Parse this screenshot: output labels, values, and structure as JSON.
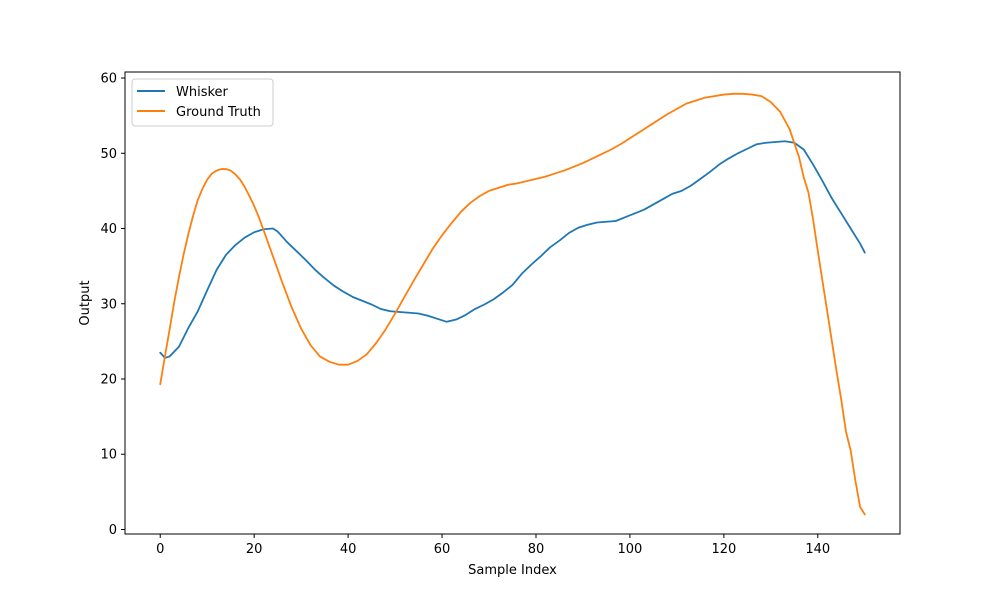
{
  "chart_data": {
    "type": "line",
    "title": "",
    "xlabel": "Sample Index",
    "ylabel": "Output",
    "xlim": [
      -7.5,
      157.5
    ],
    "ylim": [
      -0.6,
      60.8
    ],
    "xticks": [
      0,
      20,
      40,
      60,
      80,
      100,
      120,
      140
    ],
    "yticks": [
      0,
      10,
      20,
      30,
      40,
      50,
      60
    ],
    "grid": false,
    "legend": "top-left",
    "series": [
      {
        "name": "Whisker",
        "color": "#1f77b4",
        "points": [
          [
            0,
            23.5
          ],
          [
            1,
            22.8
          ],
          [
            2,
            23.0
          ],
          [
            4,
            24.3
          ],
          [
            6,
            26.8
          ],
          [
            8,
            29.0
          ],
          [
            10,
            31.8
          ],
          [
            12,
            34.5
          ],
          [
            14,
            36.5
          ],
          [
            16,
            37.8
          ],
          [
            18,
            38.8
          ],
          [
            20,
            39.5
          ],
          [
            22,
            39.9
          ],
          [
            24,
            40.0
          ],
          [
            25,
            39.6
          ],
          [
            27,
            38.2
          ],
          [
            29,
            37.0
          ],
          [
            31,
            35.8
          ],
          [
            33,
            34.5
          ],
          [
            35,
            33.4
          ],
          [
            37,
            32.4
          ],
          [
            39,
            31.6
          ],
          [
            41,
            30.9
          ],
          [
            43,
            30.4
          ],
          [
            45,
            29.9
          ],
          [
            47,
            29.3
          ],
          [
            49,
            29.0
          ],
          [
            51,
            28.9
          ],
          [
            53,
            28.8
          ],
          [
            55,
            28.7
          ],
          [
            57,
            28.4
          ],
          [
            59,
            28.0
          ],
          [
            61,
            27.6
          ],
          [
            63,
            27.9
          ],
          [
            65,
            28.5
          ],
          [
            67,
            29.3
          ],
          [
            69,
            29.9
          ],
          [
            71,
            30.6
          ],
          [
            73,
            31.5
          ],
          [
            75,
            32.5
          ],
          [
            77,
            34.0
          ],
          [
            79,
            35.2
          ],
          [
            81,
            36.3
          ],
          [
            83,
            37.5
          ],
          [
            85,
            38.4
          ],
          [
            87,
            39.4
          ],
          [
            89,
            40.1
          ],
          [
            91,
            40.5
          ],
          [
            93,
            40.8
          ],
          [
            95,
            40.9
          ],
          [
            97,
            41.0
          ],
          [
            99,
            41.5
          ],
          [
            101,
            42.0
          ],
          [
            103,
            42.5
          ],
          [
            105,
            43.2
          ],
          [
            107,
            43.9
          ],
          [
            109,
            44.6
          ],
          [
            111,
            45.0
          ],
          [
            113,
            45.7
          ],
          [
            115,
            46.6
          ],
          [
            117,
            47.5
          ],
          [
            119,
            48.5
          ],
          [
            121,
            49.3
          ],
          [
            123,
            50.0
          ],
          [
            125,
            50.6
          ],
          [
            127,
            51.2
          ],
          [
            129,
            51.4
          ],
          [
            131,
            51.5
          ],
          [
            133,
            51.6
          ],
          [
            135,
            51.4
          ],
          [
            137,
            50.5
          ],
          [
            139,
            48.5
          ],
          [
            141,
            46.3
          ],
          [
            143,
            44.0
          ],
          [
            145,
            42.0
          ],
          [
            147,
            40.0
          ],
          [
            149,
            38.0
          ],
          [
            150,
            36.8
          ]
        ]
      },
      {
        "name": "Ground Truth",
        "color": "#ff7f0e",
        "points": [
          [
            0,
            19.3
          ],
          [
            1,
            23.0
          ],
          [
            2,
            26.6
          ],
          [
            3,
            30.3
          ],
          [
            4,
            33.6
          ],
          [
            5,
            36.6
          ],
          [
            6,
            39.3
          ],
          [
            7,
            41.7
          ],
          [
            8,
            43.8
          ],
          [
            9,
            45.3
          ],
          [
            10,
            46.5
          ],
          [
            11,
            47.3
          ],
          [
            12,
            47.7
          ],
          [
            13,
            47.9
          ],
          [
            14,
            47.9
          ],
          [
            15,
            47.7
          ],
          [
            16,
            47.2
          ],
          [
            17,
            46.5
          ],
          [
            18,
            45.5
          ],
          [
            19,
            44.3
          ],
          [
            20,
            43.0
          ],
          [
            21,
            41.5
          ],
          [
            22,
            39.8
          ],
          [
            24,
            36.3
          ],
          [
            26,
            32.8
          ],
          [
            28,
            29.5
          ],
          [
            30,
            26.7
          ],
          [
            32,
            24.5
          ],
          [
            34,
            23.0
          ],
          [
            36,
            22.3
          ],
          [
            38,
            21.9
          ],
          [
            40,
            21.9
          ],
          [
            42,
            22.4
          ],
          [
            44,
            23.3
          ],
          [
            46,
            24.8
          ],
          [
            48,
            26.6
          ],
          [
            50,
            28.7
          ],
          [
            52,
            30.9
          ],
          [
            54,
            33.1
          ],
          [
            56,
            35.2
          ],
          [
            58,
            37.3
          ],
          [
            60,
            39.1
          ],
          [
            62,
            40.7
          ],
          [
            64,
            42.2
          ],
          [
            66,
            43.4
          ],
          [
            68,
            44.3
          ],
          [
            70,
            45.0
          ],
          [
            72,
            45.4
          ],
          [
            74,
            45.8
          ],
          [
            76,
            46.0
          ],
          [
            78,
            46.3
          ],
          [
            80,
            46.6
          ],
          [
            82,
            46.9
          ],
          [
            84,
            47.3
          ],
          [
            86,
            47.7
          ],
          [
            88,
            48.2
          ],
          [
            90,
            48.7
          ],
          [
            92,
            49.3
          ],
          [
            94,
            49.9
          ],
          [
            96,
            50.5
          ],
          [
            98,
            51.2
          ],
          [
            100,
            52.0
          ],
          [
            102,
            52.8
          ],
          [
            104,
            53.6
          ],
          [
            106,
            54.4
          ],
          [
            108,
            55.2
          ],
          [
            110,
            55.9
          ],
          [
            112,
            56.6
          ],
          [
            114,
            57.0
          ],
          [
            116,
            57.4
          ],
          [
            118,
            57.6
          ],
          [
            120,
            57.8
          ],
          [
            122,
            57.9
          ],
          [
            124,
            57.9
          ],
          [
            126,
            57.8
          ],
          [
            128,
            57.6
          ],
          [
            130,
            56.8
          ],
          [
            132,
            55.5
          ],
          [
            134,
            53.2
          ],
          [
            136,
            49.5
          ],
          [
            137,
            46.8
          ],
          [
            138,
            44.8
          ],
          [
            139,
            41.2
          ],
          [
            140,
            37.0
          ],
          [
            141,
            33.0
          ],
          [
            142,
            29.0
          ],
          [
            143,
            25.0
          ],
          [
            144,
            21.0
          ],
          [
            145,
            17.2
          ],
          [
            146,
            13.0
          ],
          [
            147,
            10.5
          ],
          [
            148,
            6.5
          ],
          [
            149,
            3.0
          ],
          [
            150,
            2.0
          ]
        ]
      }
    ]
  }
}
